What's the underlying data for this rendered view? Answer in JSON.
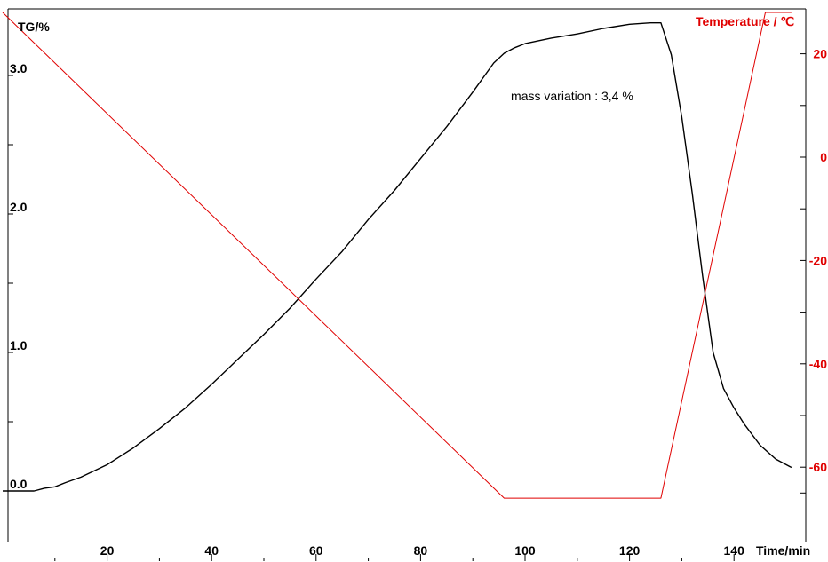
{
  "chart_data": {
    "type": "line",
    "xlabel": "Time/min",
    "ylabel_left": "TG/%",
    "ylabel_right": "Temperature / ℃",
    "xlim": [
      0,
      152
    ],
    "ylim_left": [
      -0.1,
      3.6
    ],
    "ylim_right": [
      -70,
      31
    ],
    "x_ticks": [
      20,
      40,
      60,
      80,
      100,
      120,
      140
    ],
    "left_ticks": [
      {
        "value": 0.0,
        "label": "0.0"
      },
      {
        "value": 0.5,
        "label": ""
      },
      {
        "value": 1.0,
        "label": "1.0"
      },
      {
        "value": 1.5,
        "label": ""
      },
      {
        "value": 2.0,
        "label": "2.0"
      },
      {
        "value": 2.5,
        "label": ""
      },
      {
        "value": 3.0,
        "label": "3.0"
      }
    ],
    "right_ticks": [
      {
        "value": 20,
        "label": "20"
      },
      {
        "value": 10,
        "label": ""
      },
      {
        "value": 0,
        "label": "0"
      },
      {
        "value": -10,
        "label": ""
      },
      {
        "value": -20,
        "label": "-20"
      },
      {
        "value": -30,
        "label": ""
      },
      {
        "value": -40,
        "label": "-40"
      },
      {
        "value": -50,
        "label": ""
      },
      {
        "value": -60,
        "label": "-60"
      },
      {
        "value": -65,
        "label": ""
      }
    ],
    "annotations": [
      {
        "text": "mass variation : 3,4 %",
        "x": 109,
        "y": 2.82,
        "axis": "left"
      }
    ],
    "series": [
      {
        "axis": "left",
        "color": "#000000",
        "x": [
          0,
          6,
          8,
          10,
          12,
          15,
          20,
          25,
          30,
          35,
          40,
          45,
          50,
          55,
          60,
          65,
          70,
          75,
          80,
          85,
          90,
          94,
          96,
          98,
          100,
          105,
          110,
          115,
          120,
          124,
          126,
          128,
          130,
          132,
          134,
          136,
          138,
          140,
          142,
          145,
          148,
          151
        ],
        "y": [
          0.0,
          0.0,
          0.02,
          0.03,
          0.06,
          0.1,
          0.19,
          0.31,
          0.45,
          0.6,
          0.77,
          0.95,
          1.13,
          1.32,
          1.53,
          1.73,
          1.96,
          2.17,
          2.4,
          2.63,
          2.88,
          3.09,
          3.16,
          3.2,
          3.23,
          3.27,
          3.3,
          3.34,
          3.37,
          3.38,
          3.38,
          3.15,
          2.7,
          2.15,
          1.55,
          1.0,
          0.74,
          0.6,
          0.48,
          0.33,
          0.23,
          0.17
        ]
      },
      {
        "axis": "right",
        "color": "#e00000",
        "x": [
          0,
          96,
          126,
          146,
          151
        ],
        "y": [
          28,
          -66,
          -66,
          28,
          28
        ]
      }
    ]
  }
}
